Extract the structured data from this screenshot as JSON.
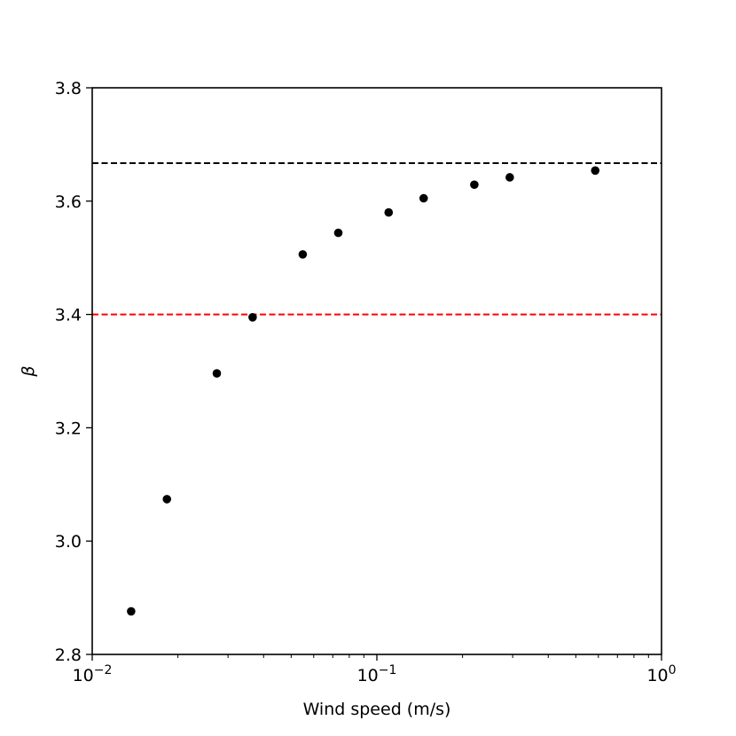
{
  "chart_data": {
    "type": "scatter",
    "xlabel": "Wind speed (m/s)",
    "ylabel": "β",
    "xscale": "log",
    "xlim": [
      0.01,
      1
    ],
    "ylim": [
      2.8,
      3.8
    ],
    "x_ticks": [
      {
        "value": 0.01,
        "base": "10",
        "exp": "−2"
      },
      {
        "value": 0.1,
        "base": "10",
        "exp": "−1"
      },
      {
        "value": 1,
        "base": "10",
        "exp": "0"
      }
    ],
    "y_ticks": [
      {
        "value": 2.8,
        "label": "2.8"
      },
      {
        "value": 3.0,
        "label": "3.0"
      },
      {
        "value": 3.2,
        "label": "3.2"
      },
      {
        "value": 3.4,
        "label": "3.4"
      },
      {
        "value": 3.6,
        "label": "3.6"
      },
      {
        "value": 3.8,
        "label": "3.8"
      }
    ],
    "points": [
      {
        "x": 0.0137,
        "y": 2.876
      },
      {
        "x": 0.0183,
        "y": 3.074
      },
      {
        "x": 0.0274,
        "y": 3.296
      },
      {
        "x": 0.0366,
        "y": 3.395
      },
      {
        "x": 0.0549,
        "y": 3.506
      },
      {
        "x": 0.0732,
        "y": 3.544
      },
      {
        "x": 0.11,
        "y": 3.58
      },
      {
        "x": 0.146,
        "y": 3.605
      },
      {
        "x": 0.22,
        "y": 3.629
      },
      {
        "x": 0.293,
        "y": 3.642
      },
      {
        "x": 0.585,
        "y": 3.654
      }
    ],
    "reference_lines": [
      {
        "y": 3.667,
        "color": "#000000",
        "style": "dashed"
      },
      {
        "y": 3.4,
        "color": "#ff0000",
        "style": "dashed"
      }
    ],
    "point_color": "#000000",
    "grid": false,
    "legend": "none"
  }
}
